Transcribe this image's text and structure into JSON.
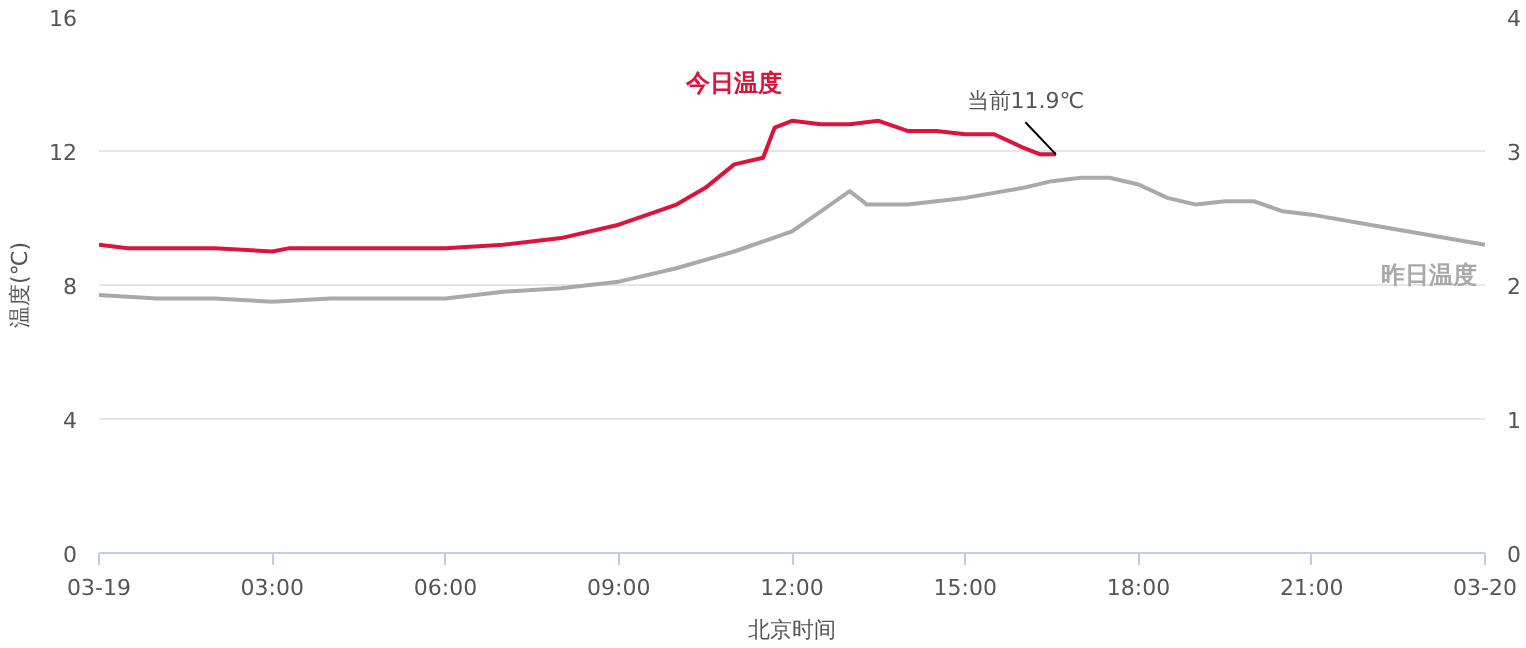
{
  "chart_data": {
    "type": "line",
    "xlabel": "北京时间",
    "ylabel": "温度(℃)",
    "xlim": [
      0,
      24
    ],
    "xticks": [
      {
        "value": 0,
        "label": "03-19"
      },
      {
        "value": 3,
        "label": "03:00"
      },
      {
        "value": 6,
        "label": "06:00"
      },
      {
        "value": 9,
        "label": "09:00"
      },
      {
        "value": 12,
        "label": "12:00"
      },
      {
        "value": 15,
        "label": "15:00"
      },
      {
        "value": 18,
        "label": "18:00"
      },
      {
        "value": 21,
        "label": "21:00"
      },
      {
        "value": 24,
        "label": "03-20"
      }
    ],
    "ylim": [
      0,
      16
    ],
    "yticks": [
      0,
      4,
      8,
      12,
      16
    ],
    "y2lim": [
      0,
      4
    ],
    "y2ticks": [
      0,
      1,
      2,
      3,
      4
    ],
    "grid": "y",
    "marker": "none",
    "line_style": "solid",
    "series": [
      {
        "name": "今日温度",
        "color": "#dc143c",
        "x": [
          0,
          0.5,
          1,
          2,
          3,
          3.3,
          4,
          5,
          6,
          7,
          8,
          9,
          10,
          10.5,
          11,
          11.5,
          11.7,
          12,
          12.5,
          13,
          13.5,
          14,
          14.5,
          15,
          15.5,
          16,
          16.3,
          16.57
        ],
        "values": [
          9.2,
          9.1,
          9.1,
          9.1,
          9.0,
          9.1,
          9.1,
          9.1,
          9.1,
          9.2,
          9.4,
          9.8,
          10.4,
          10.9,
          11.6,
          11.8,
          12.7,
          12.9,
          12.8,
          12.8,
          12.9,
          12.6,
          12.6,
          12.5,
          12.5,
          12.1,
          11.9,
          11.9
        ]
      },
      {
        "name": "昨日温度",
        "color": "#a9a9a9",
        "x": [
          0,
          1,
          2,
          3,
          4,
          5,
          6,
          7,
          8,
          9,
          10,
          11,
          12,
          12.5,
          13,
          13.3,
          14,
          15,
          16,
          16.5,
          17,
          17.5,
          18,
          18.5,
          19,
          19.5,
          20,
          20.5,
          21,
          22,
          23,
          24
        ],
        "values": [
          7.7,
          7.6,
          7.6,
          7.5,
          7.6,
          7.6,
          7.6,
          7.8,
          7.9,
          8.1,
          8.5,
          9.0,
          9.6,
          10.2,
          10.8,
          10.4,
          10.4,
          10.6,
          10.9,
          11.1,
          11.2,
          11.2,
          11.0,
          10.6,
          10.4,
          10.5,
          10.5,
          10.2,
          10.1,
          9.8,
          9.5,
          9.2
        ]
      }
    ],
    "annotations": [
      {
        "text": "当前11.9℃",
        "x": 16.57,
        "y": 11.9
      }
    ]
  }
}
